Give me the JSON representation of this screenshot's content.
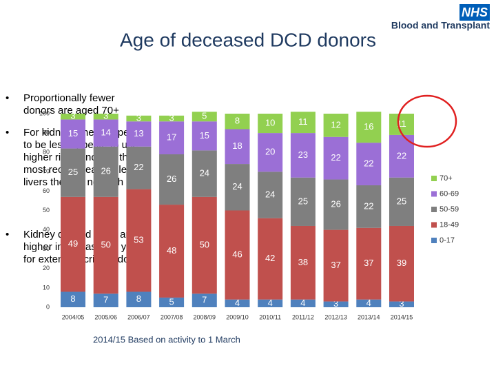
{
  "logo": {
    "mark": "NHS",
    "text": "Blood and Transplant"
  },
  "bullets": [
    "Proportionally fewer donors are aged 70+",
    "For kidneys there appears to be less appetite to use higher risk donors in the most recent year while for livers there is no such trend",
    "Kidney discard rates are higher in the last two years for extended criteria donors"
  ],
  "note": "2014/15 Based on activity to 1 March",
  "chart_data": {
    "type": "stacked_bar",
    "title": "Age of deceased DCD donors",
    "categories": [
      "2004/05",
      "2005/06",
      "2006/07",
      "2007/08",
      "2008/09",
      "2009/10",
      "2010/11",
      "2011/12",
      "2012/13",
      "2013/14",
      "2014/15"
    ],
    "series": [
      {
        "name": "0-17",
        "color": "#4f81bd",
        "values": [
          8,
          7,
          8,
          5,
          7,
          4,
          4,
          4,
          3,
          4,
          3
        ]
      },
      {
        "name": "18-49",
        "color": "#c0504d",
        "values": [
          49,
          50,
          53,
          48,
          50,
          46,
          42,
          38,
          37,
          37,
          39
        ]
      },
      {
        "name": "50-59",
        "color": "#7f7f7f",
        "values": [
          25,
          26,
          22,
          26,
          24,
          24,
          24,
          25,
          26,
          22,
          25
        ]
      },
      {
        "name": "60-69",
        "color": "#9b6fd6",
        "values": [
          15,
          14,
          13,
          17,
          15,
          18,
          20,
          23,
          22,
          22,
          22
        ]
      },
      {
        "name": "70+",
        "color": "#92d050",
        "values": [
          3,
          3,
          3,
          3,
          5,
          8,
          10,
          11,
          12,
          16,
          11
        ]
      }
    ],
    "ylim": [
      0,
      100
    ],
    "yticks": [
      0,
      10,
      20,
      30,
      40,
      50,
      60,
      70,
      80,
      90,
      100
    ],
    "grid": false
  }
}
